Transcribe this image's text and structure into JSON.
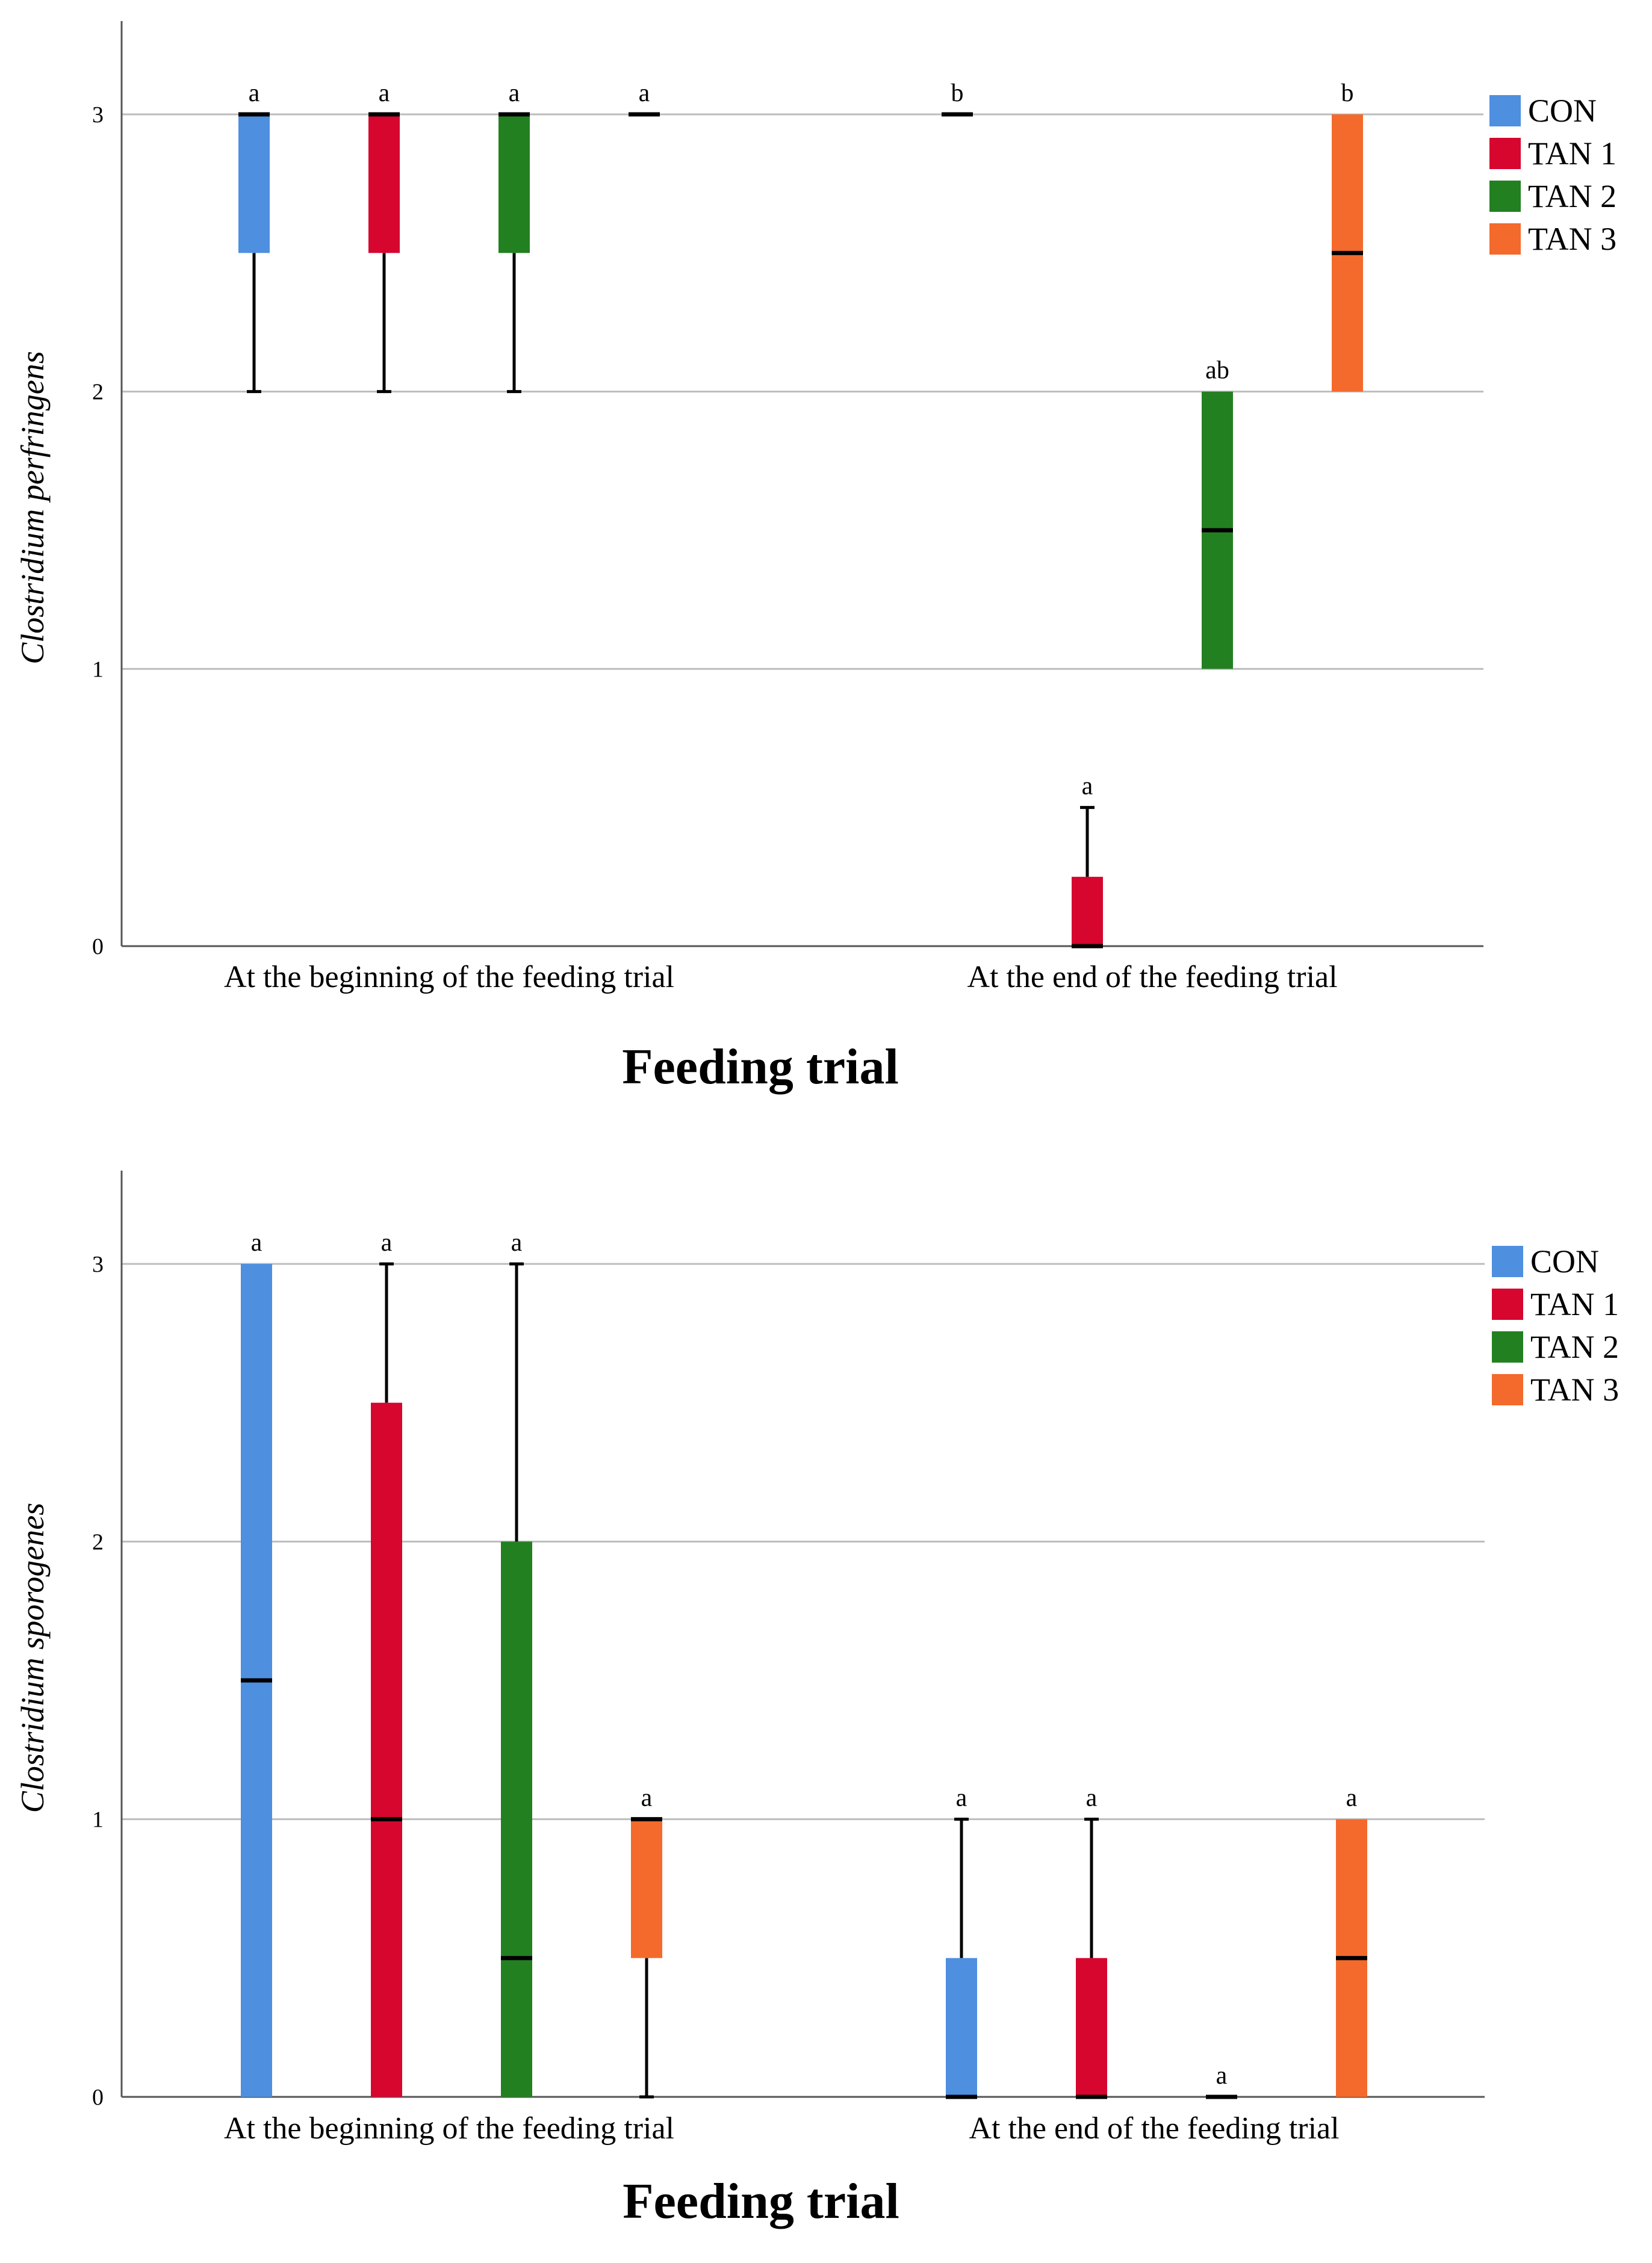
{
  "colors": {
    "CON": "#4e8fe0",
    "TAN 1": "#d6062f",
    "TAN 2": "#238021",
    "TAN 3": "#f36a2c",
    "grid": "#bdbdbd",
    "axis": "#555555"
  },
  "chart_data": [
    {
      "type": "box",
      "title": "",
      "xlabel": "Feeding trial",
      "ylabel": "Clostridium perfringens",
      "ylim": [
        0,
        3.3
      ],
      "yticks": [
        0,
        1,
        2,
        3
      ],
      "grid": true,
      "legend": {
        "position": "right-top",
        "entries": [
          "CON",
          "TAN 1",
          "TAN 2",
          "TAN 3"
        ]
      },
      "categories": [
        "At the beginning of the feeding trial",
        "At the end of the feeding trial"
      ],
      "series": [
        {
          "name": "CON",
          "boxes": [
            {
              "min": 2,
              "q1": 2.5,
              "median": 3,
              "q3": 3,
              "max": 3,
              "label": "a"
            },
            {
              "min": 3,
              "q1": 3,
              "median": 3,
              "q3": 3,
              "max": 3,
              "label": "b"
            }
          ]
        },
        {
          "name": "TAN 1",
          "boxes": [
            {
              "min": 2,
              "q1": 2.5,
              "median": 3,
              "q3": 3,
              "max": 3,
              "label": "a"
            },
            {
              "min": 0,
              "q1": 0,
              "median": 0,
              "q3": 0.25,
              "max": 0.5,
              "label": "a"
            }
          ]
        },
        {
          "name": "TAN 2",
          "boxes": [
            {
              "min": 2,
              "q1": 2.5,
              "median": 3,
              "q3": 3,
              "max": 3,
              "label": "a"
            },
            {
              "min": 1,
              "q1": 1,
              "median": 1.5,
              "q3": 2,
              "max": 2,
              "label": "ab"
            }
          ]
        },
        {
          "name": "TAN 3",
          "boxes": [
            {
              "min": 3,
              "q1": 3,
              "median": 3,
              "q3": 3,
              "max": 3,
              "label": "a"
            },
            {
              "min": 2,
              "q1": 2,
              "median": 2.5,
              "q3": 3,
              "max": 3,
              "label": "b"
            }
          ]
        }
      ]
    },
    {
      "type": "box",
      "title": "",
      "xlabel": "Feeding trial",
      "ylabel": "Clostridium sporogenes",
      "ylim": [
        0,
        3.3
      ],
      "yticks": [
        0,
        1,
        2,
        3
      ],
      "grid": true,
      "legend": {
        "position": "right-top",
        "entries": [
          "CON",
          "TAN 1",
          "TAN 2",
          "TAN 3"
        ]
      },
      "categories": [
        "At the beginning of the feeding trial",
        "At the end of the feeding trial"
      ],
      "series": [
        {
          "name": "CON",
          "boxes": [
            {
              "min": 0,
              "q1": 0,
              "median": 1.5,
              "q3": 3,
              "max": 3,
              "label": "a"
            },
            {
              "min": 0,
              "q1": 0,
              "median": 0,
              "q3": 0.5,
              "max": 1,
              "label": "a"
            }
          ]
        },
        {
          "name": "TAN 1",
          "boxes": [
            {
              "min": 0,
              "q1": 0,
              "median": 1,
              "q3": 2.5,
              "max": 3,
              "label": "a"
            },
            {
              "min": 0,
              "q1": 0,
              "median": 0,
              "q3": 0.5,
              "max": 1,
              "label": "a"
            }
          ]
        },
        {
          "name": "TAN 2",
          "boxes": [
            {
              "min": 0,
              "q1": 0,
              "median": 0.5,
              "q3": 2,
              "max": 3,
              "label": "a"
            },
            {
              "min": 0,
              "q1": 0,
              "median": 0,
              "q3": 0,
              "max": 0,
              "label": "a"
            }
          ]
        },
        {
          "name": "TAN 3",
          "boxes": [
            {
              "min": 0,
              "q1": 0.5,
              "median": 1,
              "q3": 1,
              "max": 1,
              "label": "a"
            },
            {
              "min": 0,
              "q1": 0,
              "median": 0.5,
              "q3": 1,
              "max": 1,
              "label": "a"
            }
          ]
        }
      ]
    }
  ]
}
